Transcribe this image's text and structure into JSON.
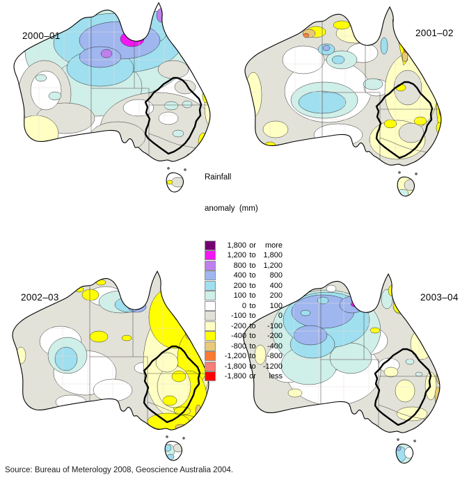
{
  "maps": [
    {
      "label": "2000–01"
    },
    {
      "label": "2001–02"
    },
    {
      "label": "2002–03"
    },
    {
      "label": "2003–04"
    }
  ],
  "legend": {
    "title_line1": "Rainfall",
    "title_line2": "anomaly  (mm)",
    "entries": [
      {
        "color": "#730073",
        "v1": "1,800",
        "mid": "or",
        "v2": "more"
      },
      {
        "color": "#F318F3",
        "v1": "1,200",
        "mid": "to",
        "v2": "1,800"
      },
      {
        "color": "#BF7FEF",
        "v1": "800",
        "mid": "to",
        "v2": "1,200"
      },
      {
        "color": "#9FB6EF",
        "v1": "400",
        "mid": "to",
        "v2": "800"
      },
      {
        "color": "#9FDFEF",
        "v1": "200",
        "mid": "to",
        "v2": "400"
      },
      {
        "color": "#CFEFE9",
        "v1": "100",
        "mid": "to",
        "v2": "200"
      },
      {
        "color": "#FFFFFF",
        "v1": "0",
        "mid": "to",
        "v2": "100"
      },
      {
        "color": "#E2E2D9",
        "v1": "-100",
        "mid": "to",
        "v2": "0"
      },
      {
        "color": "#FFFFC3",
        "v1": "-200",
        "mid": "to",
        "v2": "-100"
      },
      {
        "color": "#FFFF00",
        "v1": "-400",
        "mid": "to",
        "v2": "-200"
      },
      {
        "color": "#E9C977",
        "v1": "-800",
        "mid": "to",
        "v2": "-400"
      },
      {
        "color": "#F97832",
        "v1": "-1,200",
        "mid": "to",
        "v2": "-800"
      },
      {
        "color": "#F57F77",
        "v1": "-1,800",
        "mid": "to",
        "v2": "-1200"
      },
      {
        "color": "#FF0000",
        "v1": "-1,800",
        "mid": "or",
        "v2": "less"
      }
    ]
  },
  "source": "Source: Bureau of Meterology 2008, Geoscience Australia 2004."
}
